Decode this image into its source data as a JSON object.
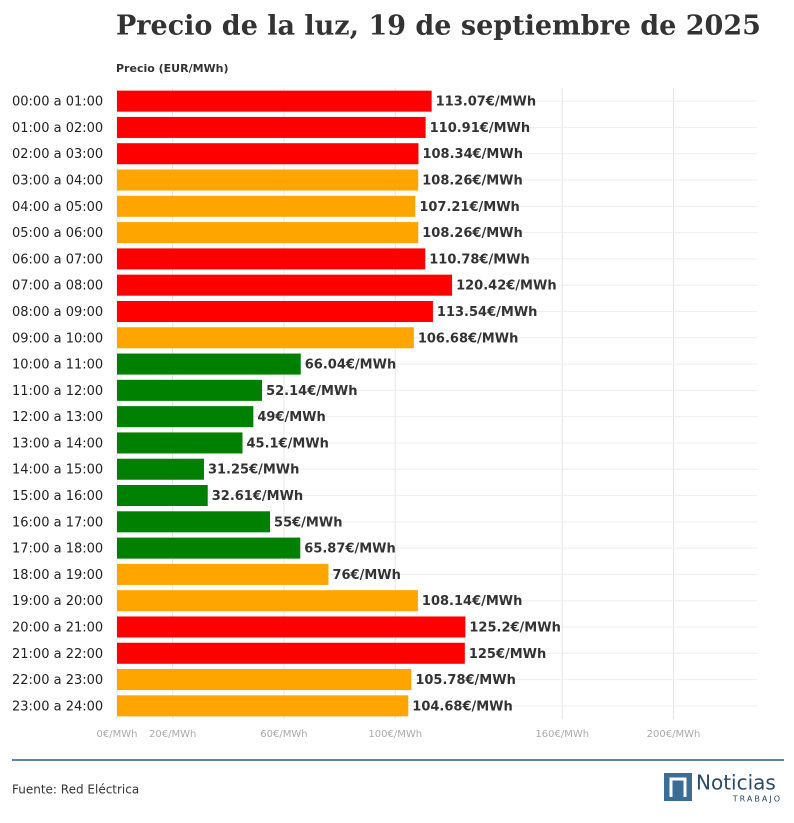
{
  "chart_data": {
    "type": "bar",
    "orientation": "horizontal",
    "title": "Precio de la luz, 19 de septiembre de 2025",
    "x_label": "Precio (EUR/MWh)",
    "categories": [
      "00:00 a 01:00",
      "01:00 a 02:00",
      "02:00 a 03:00",
      "03:00 a 04:00",
      "04:00 a 05:00",
      "05:00 a 06:00",
      "06:00 a 07:00",
      "07:00 a 08:00",
      "08:00 a 09:00",
      "09:00 a 10:00",
      "10:00 a 11:00",
      "11:00 a 12:00",
      "12:00 a 13:00",
      "13:00 a 14:00",
      "14:00 a 15:00",
      "15:00 a 16:00",
      "16:00 a 17:00",
      "17:00 a 18:00",
      "18:00 a 19:00",
      "19:00 a 20:00",
      "20:00 a 21:00",
      "21:00 a 22:00",
      "22:00 a 23:00",
      "23:00 a 24:00"
    ],
    "values": [
      113.07,
      110.91,
      108.34,
      108.26,
      107.21,
      108.26,
      110.78,
      120.42,
      113.54,
      106.68,
      66.04,
      52.14,
      49,
      45.1,
      31.25,
      32.61,
      55,
      65.87,
      76,
      108.14,
      125.2,
      125,
      105.78,
      104.68
    ],
    "value_labels": [
      "113.07€/MWh",
      "110.91€/MWh",
      "108.34€/MWh",
      "108.26€/MWh",
      "107.21€/MWh",
      "108.26€/MWh",
      "110.78€/MWh",
      "120.42€/MWh",
      "113.54€/MWh",
      "106.68€/MWh",
      "66.04€/MWh",
      "52.14€/MWh",
      "49€/MWh",
      "45.1€/MWh",
      "31.25€/MWh",
      "32.61€/MWh",
      "55€/MWh",
      "65.87€/MWh",
      "76€/MWh",
      "108.14€/MWh",
      "125.2€/MWh",
      "125€/MWh",
      "105.78€/MWh",
      "104.68€/MWh"
    ],
    "colors": [
      "#ff0000",
      "#ff0000",
      "#ff0000",
      "#ffa500",
      "#ffa500",
      "#ffa500",
      "#ff0000",
      "#ff0000",
      "#ff0000",
      "#ffa500",
      "#008000",
      "#008000",
      "#008000",
      "#008000",
      "#008000",
      "#008000",
      "#008000",
      "#008000",
      "#ffa500",
      "#ffa500",
      "#ff0000",
      "#ff0000",
      "#ffa500",
      "#ffa500"
    ],
    "xlim": [
      0,
      230
    ],
    "xticks": [
      {
        "value": 0,
        "label": "0€/MWh"
      },
      {
        "value": 20,
        "label": "20€/MWh"
      },
      {
        "value": 60,
        "label": "60€/MWh"
      },
      {
        "value": 100,
        "label": "100€/MWh"
      },
      {
        "value": 160,
        "label": "160€/MWh"
      },
      {
        "value": 200,
        "label": "200€/MWh"
      }
    ],
    "grid": true
  },
  "footer": {
    "source": "Fuente: Red Eléctrica",
    "logo": "Noticias",
    "logo_sub": "TRABAJO"
  }
}
